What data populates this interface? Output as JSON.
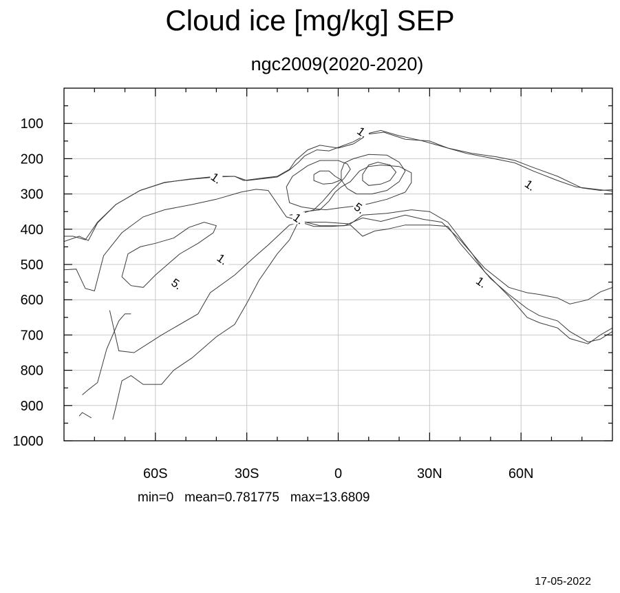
{
  "chart_data": {
    "type": "contour",
    "title": "Cloud ice [mg/kg] SEP",
    "subtitle": "ngc2009(2020-2020)",
    "x_axis": {
      "range": [
        -90,
        90
      ],
      "ticks": [
        {
          "value": -60,
          "label": "60S"
        },
        {
          "value": -30,
          "label": "30S"
        },
        {
          "value": 0,
          "label": "0"
        },
        {
          "value": 30,
          "label": "30N"
        },
        {
          "value": 60,
          "label": "60N"
        }
      ],
      "minor_ticks": [
        -80,
        -70,
        -50,
        -40,
        -20,
        -10,
        10,
        20,
        40,
        50,
        70,
        80
      ]
    },
    "y_axis": {
      "range": [
        0,
        1000
      ],
      "inverted": true,
      "ticks": [
        100,
        200,
        300,
        400,
        500,
        600,
        700,
        800,
        900,
        1000
      ],
      "tick_labels": [
        "100",
        "200",
        "300",
        "400",
        "500",
        "600",
        "700",
        "800",
        "900",
        "1000"
      ]
    },
    "grid": true,
    "contour_levels": [
      {
        "level": 1,
        "label": "1."
      },
      {
        "level": 5,
        "label": "5."
      }
    ],
    "contour_labels": [
      {
        "text": "1.",
        "lat": -40,
        "p": 255
      },
      {
        "text": "1.",
        "lat": -38,
        "p": 485
      },
      {
        "text": "1.",
        "lat": -13,
        "p": 370
      },
      {
        "text": "1.",
        "lat": 8,
        "p": 125
      },
      {
        "text": "1.",
        "lat": 63,
        "p": 275
      },
      {
        "text": "1.",
        "lat": 47,
        "p": 550
      },
      {
        "text": "5.",
        "lat": -53,
        "p": 555
      },
      {
        "text": "5.",
        "lat": 7,
        "p": 340
      }
    ],
    "contours": [
      {
        "level": 1,
        "points": [
          [
            -90,
            435
          ],
          [
            -85,
            420
          ],
          [
            -82,
            432
          ],
          [
            -79,
            382
          ],
          [
            -73,
            330
          ],
          [
            -65,
            290
          ],
          [
            -57,
            268
          ],
          [
            -49,
            258
          ],
          [
            -40,
            250
          ],
          [
            -34,
            250
          ],
          [
            -31,
            262
          ],
          [
            -26,
            256
          ],
          [
            -20,
            250
          ],
          [
            -16,
            230
          ],
          [
            -14,
            205
          ],
          [
            -10,
            175
          ],
          [
            -6,
            162
          ],
          [
            0,
            170
          ],
          [
            5,
            158
          ],
          [
            10,
            130
          ],
          [
            15,
            125
          ],
          [
            22,
            145
          ],
          [
            30,
            150
          ],
          [
            36,
            170
          ],
          [
            44,
            185
          ],
          [
            52,
            195
          ],
          [
            58,
            205
          ],
          [
            64,
            225
          ],
          [
            72,
            250
          ],
          [
            80,
            283
          ],
          [
            86,
            290
          ],
          [
            90,
            288
          ]
        ]
      },
      {
        "level": 1,
        "points": [
          [
            -90,
            515
          ],
          [
            -86,
            513
          ],
          [
            -83,
            568
          ],
          [
            -80,
            575
          ],
          [
            -77,
            475
          ],
          [
            -71,
            410
          ],
          [
            -64,
            365
          ],
          [
            -57,
            345
          ],
          [
            -48,
            330
          ],
          [
            -40,
            315
          ],
          [
            -32,
            295
          ],
          [
            -27,
            287
          ],
          [
            -23,
            290
          ],
          [
            -17,
            365
          ],
          [
            -13,
            375
          ],
          [
            -6,
            390
          ],
          [
            2,
            390
          ],
          [
            8,
            368
          ],
          [
            14,
            378
          ],
          [
            22,
            360
          ],
          [
            28,
            372
          ],
          [
            34,
            380
          ],
          [
            40,
            430
          ],
          [
            48,
            510
          ],
          [
            56,
            565
          ],
          [
            62,
            580
          ],
          [
            66,
            585
          ],
          [
            72,
            595
          ],
          [
            76,
            612
          ],
          [
            82,
            600
          ],
          [
            86,
            578
          ],
          [
            90,
            565
          ]
        ]
      },
      {
        "level": 1,
        "points": [
          [
            -90,
            420
          ],
          [
            -87,
            420
          ],
          [
            -83,
            430
          ],
          [
            -79,
            380
          ],
          [
            -73,
            330
          ],
          [
            -65,
            290
          ],
          [
            -57,
            267
          ],
          [
            -48,
            258
          ],
          [
            -40,
            252
          ],
          [
            -34,
            250
          ],
          [
            -30,
            262
          ],
          [
            -26,
            258
          ],
          [
            -20,
            252
          ],
          [
            -16,
            232
          ],
          [
            -13,
            210
          ],
          [
            -11,
            192
          ],
          [
            -7,
            175
          ],
          [
            -3,
            178
          ],
          [
            0,
            168
          ],
          [
            5,
            152
          ],
          [
            10,
            128
          ],
          [
            14,
            120
          ],
          [
            20,
            135
          ],
          [
            27,
            148
          ],
          [
            34,
            165
          ],
          [
            42,
            185
          ],
          [
            50,
            198
          ],
          [
            58,
            212
          ],
          [
            64,
            235
          ],
          [
            72,
            262
          ],
          [
            78,
            280
          ],
          [
            86,
            288
          ],
          [
            90,
            292
          ]
        ]
      },
      {
        "level": 1,
        "points": [
          [
            -75,
            630
          ],
          [
            -72,
            745
          ],
          [
            -67,
            750
          ],
          [
            -58,
            700
          ],
          [
            -46,
            640
          ],
          [
            -42,
            580
          ],
          [
            -34,
            530
          ],
          [
            -27,
            475
          ],
          [
            -23,
            445
          ],
          [
            -16,
            388
          ],
          [
            -12,
            380
          ],
          [
            -4,
            380
          ],
          [
            4,
            385
          ],
          [
            8,
            360
          ],
          [
            16,
            355
          ],
          [
            24,
            345
          ],
          [
            30,
            350
          ],
          [
            36,
            380
          ],
          [
            40,
            425
          ],
          [
            44,
            470
          ],
          [
            48,
            520
          ],
          [
            56,
            590
          ],
          [
            62,
            650
          ],
          [
            66,
            665
          ],
          [
            72,
            680
          ],
          [
            76,
            710
          ],
          [
            82,
            725
          ],
          [
            86,
            700
          ],
          [
            90,
            680
          ]
        ]
      },
      {
        "level": 1,
        "points": [
          [
            -84,
            870
          ],
          [
            -82,
            855
          ],
          [
            -79,
            835
          ],
          [
            -76,
            740
          ],
          [
            -72,
            660
          ],
          [
            -70,
            640
          ],
          [
            -68,
            640
          ]
        ]
      },
      {
        "level": 1,
        "points": [
          [
            -85,
            930
          ],
          [
            -84,
            920
          ],
          [
            -81,
            935
          ]
        ]
      },
      {
        "level": 1,
        "points": [
          [
            -74,
            940
          ],
          [
            -73,
            905
          ],
          [
            -71,
            830
          ],
          [
            -68,
            815
          ],
          [
            -64,
            840
          ],
          [
            -58,
            840
          ],
          [
            -54,
            800
          ],
          [
            -48,
            765
          ],
          [
            -40,
            705
          ],
          [
            -34,
            670
          ],
          [
            -30,
            610
          ],
          [
            -26,
            545
          ],
          [
            -20,
            470
          ],
          [
            -16,
            430
          ],
          [
            -13,
            378
          ],
          [
            -8,
            392
          ],
          [
            -2,
            392
          ],
          [
            4,
            388
          ],
          [
            8,
            420
          ],
          [
            12,
            405
          ],
          [
            16,
            400
          ],
          [
            22,
            388
          ],
          [
            30,
            388
          ],
          [
            36,
            392
          ],
          [
            40,
            440
          ],
          [
            44,
            480
          ],
          [
            50,
            540
          ],
          [
            56,
            585
          ],
          [
            62,
            625
          ],
          [
            66,
            645
          ],
          [
            72,
            660
          ],
          [
            76,
            690
          ],
          [
            82,
            720
          ],
          [
            86,
            712
          ],
          [
            90,
            690
          ]
        ]
      },
      {
        "level": 1,
        "points": [
          [
            -16,
            360
          ],
          [
            -11,
            350
          ],
          [
            -6,
            345
          ],
          [
            -3,
            320
          ],
          [
            -1,
            295
          ],
          [
            1,
            280
          ],
          [
            4,
            265
          ],
          [
            7,
            235
          ],
          [
            10,
            222
          ],
          [
            14,
            218
          ],
          [
            20,
            222
          ],
          [
            24,
            240
          ],
          [
            24,
            268
          ],
          [
            22,
            295
          ],
          [
            16,
            315
          ],
          [
            10,
            328
          ],
          [
            5,
            335
          ],
          [
            0,
            340
          ],
          [
            -4,
            345
          ],
          [
            -8,
            342
          ],
          [
            -12,
            337
          ],
          [
            -16,
            325
          ],
          [
            -17,
            280
          ],
          [
            -15,
            250
          ],
          [
            -10,
            220
          ],
          [
            -6,
            205
          ],
          [
            0,
            205
          ],
          [
            3,
            215
          ],
          [
            4,
            230
          ],
          [
            2,
            255
          ],
          [
            -2,
            290
          ],
          [
            -5,
            320
          ],
          [
            -8,
            345
          ],
          [
            -13,
            358
          ],
          [
            -16,
            360
          ]
        ]
      }
    ],
    "inner_contours": [
      {
        "level": 5,
        "points": [
          [
            -71,
            535
          ],
          [
            -69,
            470
          ],
          [
            -65,
            450
          ],
          [
            -60,
            440
          ],
          [
            -54,
            425
          ],
          [
            -49,
            395
          ],
          [
            -44,
            380
          ],
          [
            -40,
            390
          ],
          [
            -41,
            410
          ],
          [
            -46,
            440
          ],
          [
            -52,
            470
          ],
          [
            -56,
            500
          ],
          [
            -60,
            530
          ],
          [
            -64,
            565
          ],
          [
            -68,
            560
          ],
          [
            -71,
            535
          ]
        ]
      },
      {
        "level": 5,
        "points": [
          [
            -8,
            245
          ],
          [
            -6,
            235
          ],
          [
            -3,
            235
          ],
          [
            -1,
            250
          ],
          [
            1,
            260
          ],
          [
            -2,
            270
          ],
          [
            -5,
            272
          ],
          [
            -8,
            262
          ],
          [
            -8,
            245
          ]
        ]
      },
      {
        "level": 5,
        "points": [
          [
            8,
            245
          ],
          [
            10,
            218
          ],
          [
            13,
            210
          ],
          [
            17,
            218
          ],
          [
            19,
            238
          ],
          [
            17,
            262
          ],
          [
            14,
            272
          ],
          [
            10,
            276
          ],
          [
            8,
            262
          ],
          [
            8,
            245
          ]
        ]
      },
      {
        "level": 5,
        "points": [
          [
            1,
            235
          ],
          [
            2,
            212
          ],
          [
            5,
            200
          ],
          [
            10,
            188
          ],
          [
            16,
            190
          ],
          [
            20,
            210
          ],
          [
            22,
            235
          ],
          [
            20,
            265
          ],
          [
            16,
            290
          ],
          [
            11,
            300
          ],
          [
            6,
            300
          ],
          [
            3,
            285
          ],
          [
            1,
            260
          ],
          [
            1,
            235
          ]
        ]
      }
    ]
  },
  "stats": {
    "text": "min=0   mean=0.781775   max=13.6809"
  },
  "footer": {
    "date": "17-05-2022"
  }
}
